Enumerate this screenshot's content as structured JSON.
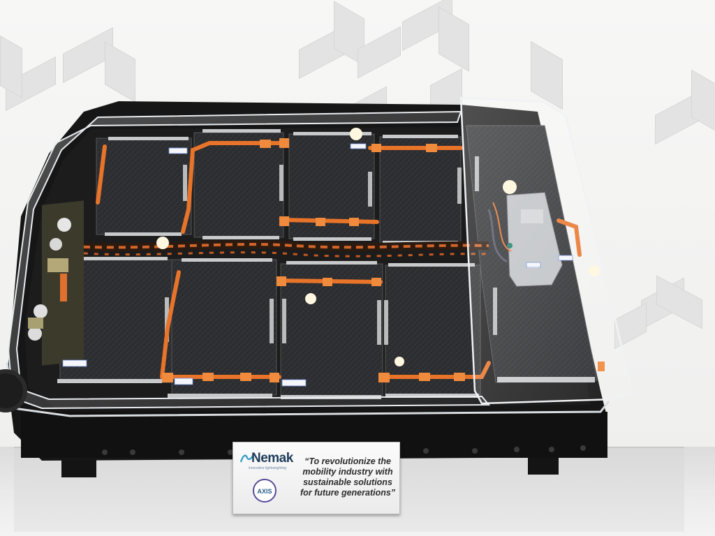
{
  "scene": {
    "subject": "battery-pack-display",
    "colors": {
      "wall": "#f2f2f1",
      "frame": "#161616",
      "module": "#2d2e31",
      "busbar": "#e8742a",
      "brand": "#1f3c5c",
      "axis_ring": "#5a4a9a"
    }
  },
  "placard": {
    "brand": "Nemak",
    "tagline": "innovative lightweighting",
    "badge": "AXIS",
    "quote_lines": [
      "“To revolutionize the",
      "mobility industry with",
      "sustainable solutions",
      "for future generations”"
    ]
  },
  "icons": {
    "logo": "nemak-wave-icon",
    "badge": "axis-circle-icon"
  }
}
